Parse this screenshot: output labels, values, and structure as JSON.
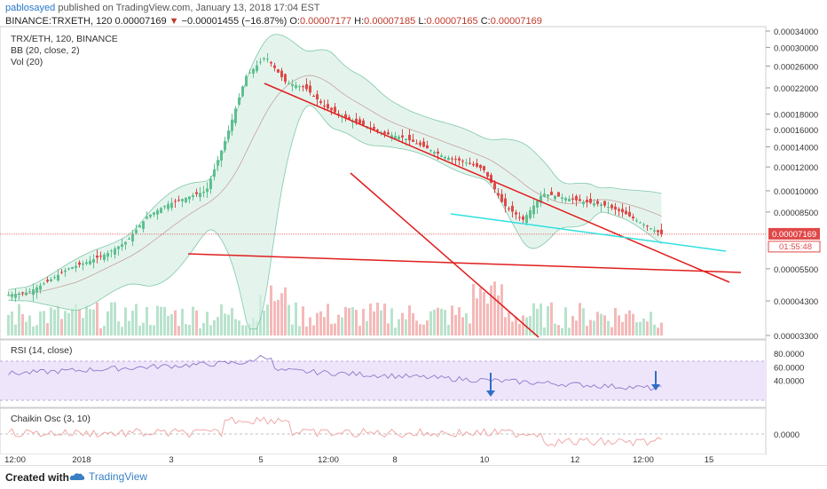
{
  "header": {
    "user": "pablosayed",
    "published": "published on TradingView.com, January 13, 2018 17:04 EST",
    "symbol": "BINANCE:TRXETH, 120",
    "last": "0.00007169",
    "change": "−0.00001455 (−16.87%)",
    "o_label": "O:",
    "o_value": "0.00007177",
    "h_label": "H:",
    "h_value": "0.00007185",
    "l_label": "L:",
    "l_value": "0.00007165",
    "c_label": "C:",
    "c_value": "0.00007169"
  },
  "legends": {
    "main": "TRX/ETH, 120, BINANCE",
    "bb": "BB (20, close, 2)",
    "vol": "Vol (20)",
    "rsi": "RSI (14, close)",
    "chaikin": "Chaikin Osc (3, 10)"
  },
  "price_axis": [
    "0.00034000",
    "0.00030000",
    "0.00026000",
    "0.00022000",
    "0.00018000",
    "0.00016000",
    "0.00014000",
    "0.00012000",
    "0.00010000",
    "0.00008500",
    "0.00005500",
    "0.00004300",
    "0.00003300"
  ],
  "price_tag": {
    "value": "0.00007169",
    "countdown": "01:55:48",
    "color": "#e04848"
  },
  "rsi_axis": [
    "80.0000",
    "60.0000",
    "40.0000"
  ],
  "chaikin_axis": [
    "0.0000"
  ],
  "time_axis": [
    "12:00",
    "2018",
    "3",
    "5",
    "12:00",
    "8",
    "10",
    "12",
    "12:00",
    "15"
  ],
  "footer": {
    "created": "Created with",
    "brand": "TradingView"
  },
  "colors": {
    "up": "#5fbf8f",
    "down": "#e04848",
    "bb_fill": "#d8efe6",
    "trendline": "#e01e1e",
    "aqua_line": "#2fe0e0",
    "rsi_band": "#efe5fb",
    "rsi_line": "#8e78c8",
    "chaikin_line": "#f0a0a0",
    "arrow": "#2d6ec8"
  },
  "chart_data": {
    "type": "candlestick",
    "series": "TRX/ETH 2h",
    "y_scale": "log",
    "ylim": [
      3.3e-05,
      0.00034
    ],
    "x": [
      "Dec 31 12:00",
      "Jan 1 (2018)",
      "Jan 3",
      "Jan 5",
      "Jan 6 12:00",
      "Jan 8",
      "Jan 10",
      "Jan 12",
      "Jan 13 12:00",
      "Jan 15"
    ],
    "approx_close_path": [
      4.5e-05,
      4.6e-05,
      5e-05,
      5.5e-05,
      5.8e-05,
      6.2e-05,
      6.8e-05,
      8.2e-05,
      9e-05,
      9.5e-05,
      0.0001,
      0.00015,
      0.00024,
      0.00028,
      0.00023,
      0.00022,
      0.00019,
      0.000175,
      0.000165,
      0.000155,
      0.00015,
      0.00014,
      0.00013,
      0.000125,
      0.000118,
      9e-05,
      8e-05,
      9.8e-05,
      9.5e-05,
      9.2e-05,
      9e-05,
      8.5e-05,
      7.8e-05,
      7.169e-05
    ],
    "rsi_levels": [
      70,
      30
    ],
    "rsi_arrows_at": [
      "Jan 10",
      "Jan 13 12:00"
    ]
  }
}
